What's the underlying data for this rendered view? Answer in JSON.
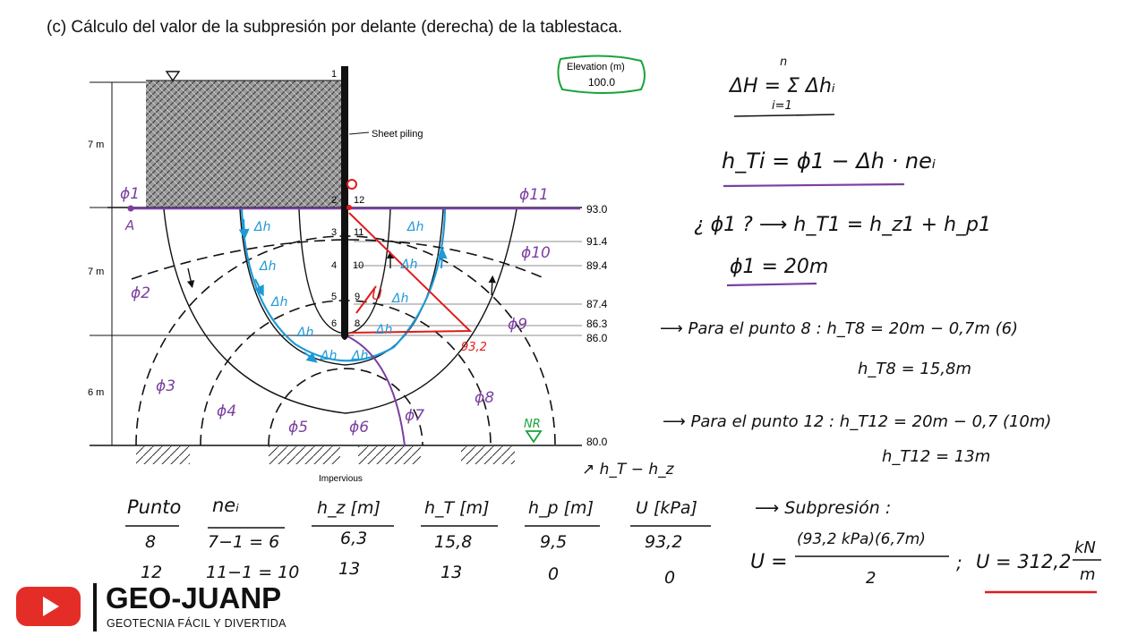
{
  "title": "(c) Cálculo del valor de la subpresión por delante (derecha) de la tablestaca.",
  "diagram": {
    "elevation_box": {
      "label": "Elevation (m)",
      "value": "100.0"
    },
    "sheet_piling_label": "Sheet piling",
    "impervious_label": "Impervious",
    "depth_labels": [
      "7 m",
      "7 m",
      "6 m"
    ],
    "elevations": [
      "93.0",
      "91.4",
      "89.4",
      "87.4",
      "86.3",
      "86.0",
      "80.0"
    ],
    "point_numbers": [
      "1",
      "2",
      "3",
      "4",
      "5",
      "6",
      "7",
      "8",
      "9",
      "10",
      "11",
      "12"
    ],
    "phi_labels": [
      "ϕ1",
      "ϕ2",
      "ϕ3",
      "ϕ4",
      "ϕ5",
      "ϕ6",
      "ϕ7",
      "ϕ8",
      "ϕ9",
      "ϕ10",
      "ϕ11"
    ],
    "point_A": "A",
    "dh_label": "Δh",
    "u_label": "U",
    "red_value": "93,2",
    "red_zero": "0",
    "nr_label": "NR"
  },
  "equations": {
    "eq1": "ΔH = Σ Δhᵢ",
    "eq1_upper": "n",
    "eq1_lower": "i=1",
    "eq2": "h_Ti = ϕ1 − Δh · neᵢ",
    "eq3": "¿ ϕ1 ? ⟶ h_T1 = h_z1 + h_p1",
    "eq4": "ϕ1 = 20m",
    "eq5": "⟶ Para el punto 8 :  h_T8 = 20m − 0,7m (6)",
    "eq6": "h_T8 = 15,8m",
    "eq7": "⟶ Para el punto 12 :  h_T12 = 20m − 0,7 (10m)",
    "eq8": "h_T12 = 13m",
    "hp_note": "↗ h_T − h_z",
    "subpresion": "⟶ Subpresión :",
    "u_formula_num": "(93,2 kPa)(6,7m)",
    "u_formula_den": "2",
    "u_formula_lhs": "U =",
    "u_result": "U = 312,2",
    "u_units_num": "kN",
    "u_units_den": "m",
    "semicolon": ";"
  },
  "table": {
    "headers": [
      "Punto",
      "neᵢ",
      "h_z [m]",
      "h_T [m]",
      "h_p [m]",
      "U [kPa]"
    ],
    "rows": [
      [
        "8",
        "7−1 = 6",
        "6,3",
        "15,8",
        "9,5",
        "93,2"
      ],
      [
        "12",
        "11−1 = 10",
        "13",
        "13",
        "0",
        "0"
      ]
    ]
  },
  "brand": {
    "name": "GEO-JUANP",
    "tagline": "GEOTECNIA FÁCIL Y DIVERTIDA",
    "icon": "youtube-play-icon",
    "accent": "#e52d27"
  },
  "colors": {
    "blue": "#1e9ad6",
    "red": "#e01b1b",
    "purple": "#7b3fa0",
    "green": "#1aa33a"
  }
}
